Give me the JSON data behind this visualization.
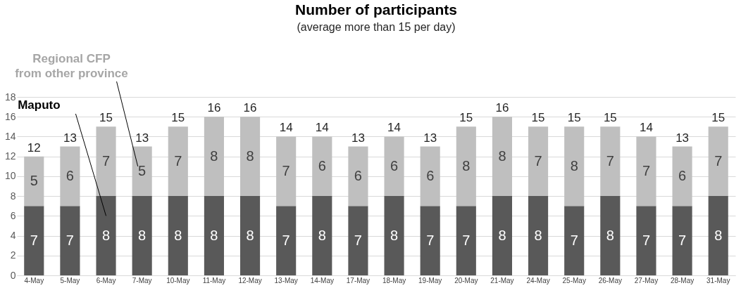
{
  "chart_data": {
    "type": "bar",
    "title": "Number of participants",
    "subtitle": "(average more than 15 per day)",
    "stacked": true,
    "data_labels": true,
    "grid": "y",
    "legend": false,
    "categories": [
      "4-May",
      "5-May",
      "6-May",
      "7-May",
      "10-May",
      "11-May",
      "12-May",
      "13-May",
      "14-May",
      "17-May",
      "18-May",
      "19-May",
      "20-May",
      "21-May",
      "24-May",
      "25-May",
      "26-May",
      "27-May",
      "28-May",
      "31-May"
    ],
    "series": [
      {
        "name": "Maputo",
        "color": "#595959",
        "values": [
          7,
          7,
          8,
          8,
          8,
          8,
          8,
          7,
          8,
          7,
          8,
          7,
          7,
          8,
          8,
          7,
          8,
          7,
          7,
          8
        ]
      },
      {
        "name": "Regional CFP from other province",
        "color": "#bfbfbf",
        "values": [
          5,
          6,
          7,
          5,
          7,
          8,
          8,
          7,
          6,
          6,
          6,
          6,
          8,
          8,
          7,
          8,
          7,
          7,
          6,
          7
        ]
      }
    ],
    "totals": [
      "12",
      "13",
      "15",
      "13",
      "15",
      "16",
      "16",
      "14",
      "14",
      "13",
      "14",
      "13",
      "15",
      "16",
      "15",
      "15",
      "15",
      "14",
      "13",
      "15"
    ],
    "ylim": [
      0,
      18
    ],
    "yticks": [
      0,
      2,
      4,
      6,
      8,
      10,
      12,
      14,
      16,
      18
    ]
  }
}
